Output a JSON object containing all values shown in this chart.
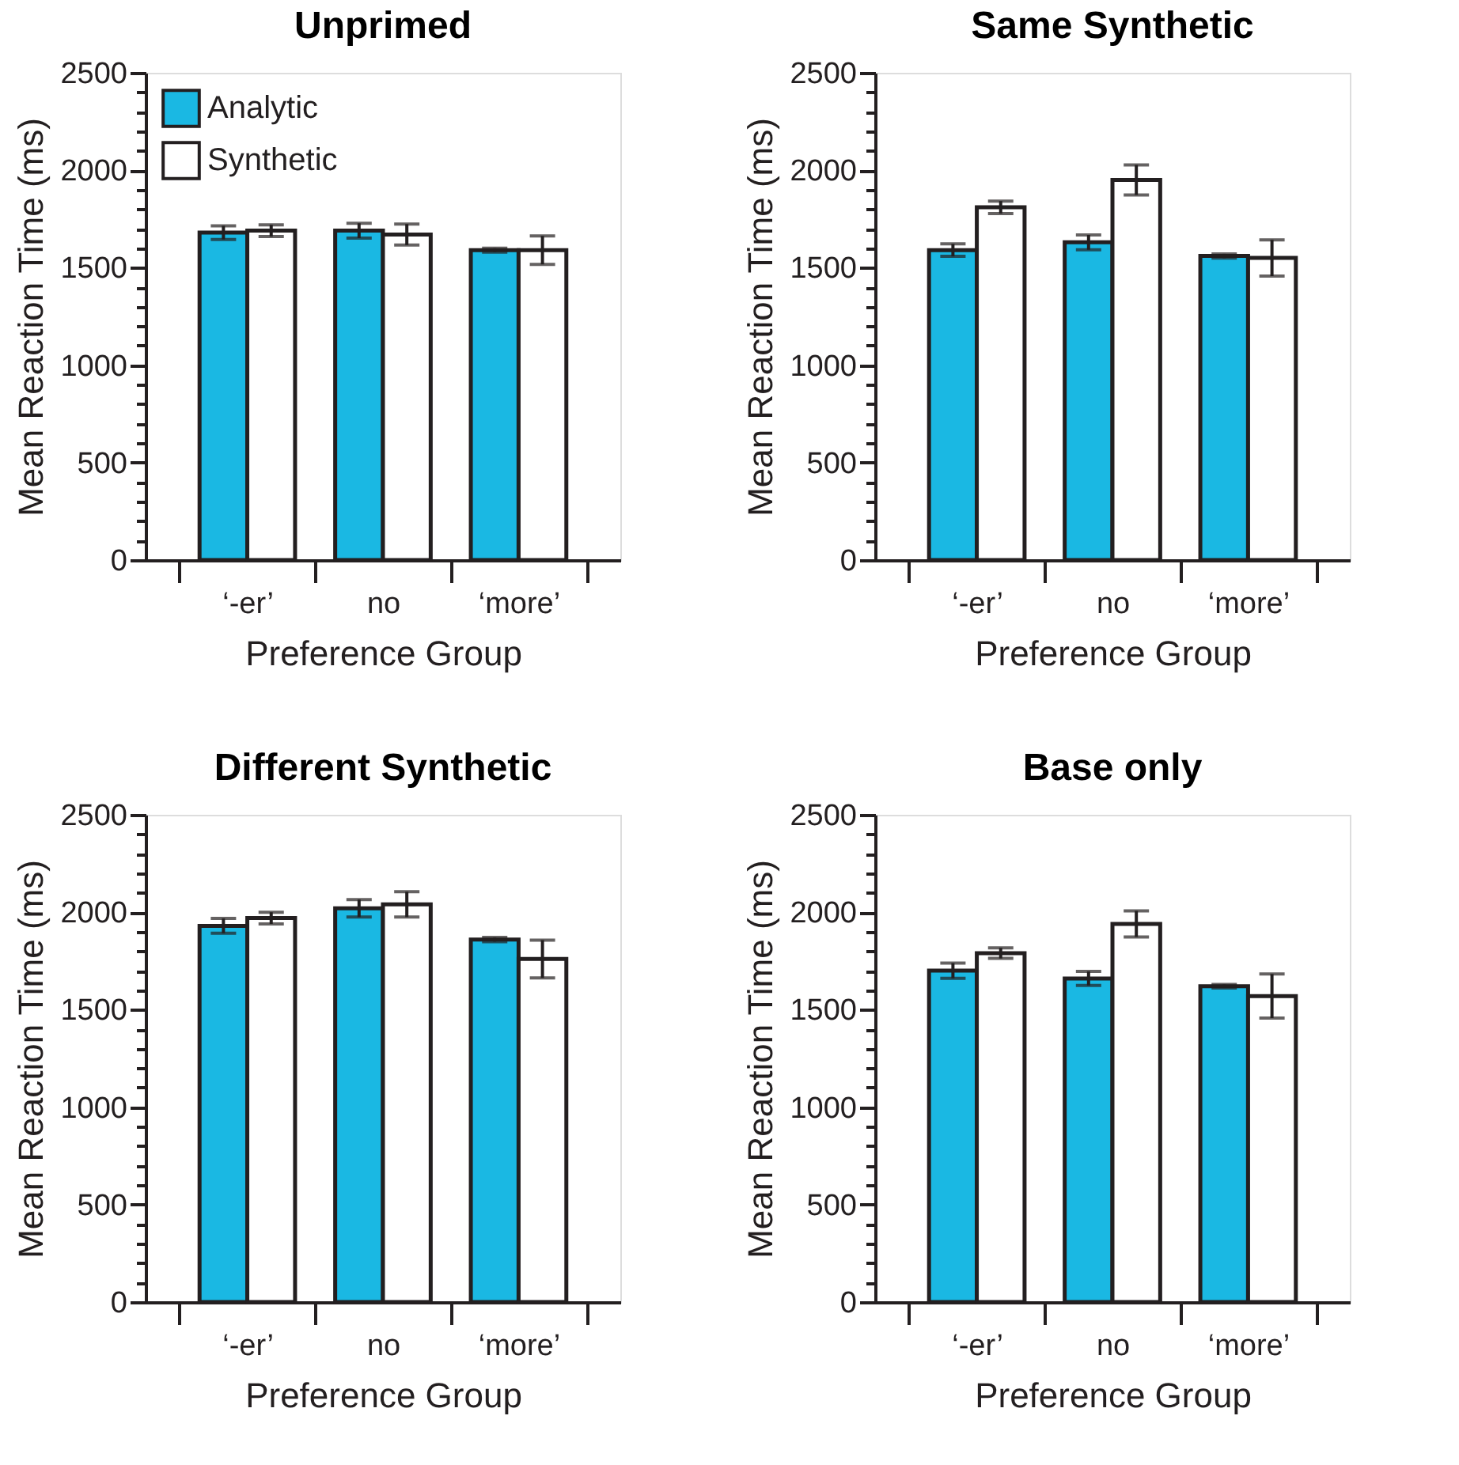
{
  "chart_data": [
    {
      "type": "bar",
      "title": "Unprimed",
      "xlabel": "Preference Group",
      "ylabel": "Mean Reaction Time (ms)",
      "categories": [
        "‘-er’",
        "no",
        "‘more’"
      ],
      "series": [
        {
          "name": "Analytic",
          "color": "#1ab8e3",
          "values": [
            1680,
            1690,
            1590
          ],
          "errors": [
            35,
            38,
            10
          ]
        },
        {
          "name": "Synthetic",
          "color": "#ffffff",
          "values": [
            1690,
            1670,
            1590
          ],
          "errors": [
            30,
            54,
            73
          ]
        }
      ],
      "ylim": [
        0,
        2500
      ],
      "yticks": [
        0,
        {
          "value": 100,
          "label": null
        },
        {
          "value": 200,
          "label": null
        },
        {
          "value": 300,
          "label": null
        },
        {
          "value": 400,
          "label": null
        },
        500,
        {
          "value": 600,
          "label": null
        },
        {
          "value": 700,
          "label": null
        },
        {
          "value": 800,
          "label": null
        },
        {
          "value": 900,
          "label": null
        },
        1000,
        {
          "value": 1100,
          "label": null
        },
        {
          "value": 1200,
          "label": null
        },
        {
          "value": 1300,
          "label": null
        },
        {
          "value": 1400,
          "label": null
        },
        1500,
        {
          "value": 1600,
          "label": null
        },
        {
          "value": 1700,
          "label": null
        },
        {
          "value": 1800,
          "label": null
        },
        {
          "value": 1900,
          "label": null
        },
        2000,
        {
          "value": 2100,
          "label": null
        },
        {
          "value": 2200,
          "label": null
        },
        {
          "value": 2300,
          "label": null
        },
        {
          "value": 2400,
          "label": null
        },
        2500
      ],
      "legend": "top left",
      "grid": false
    },
    {
      "type": "bar",
      "title": "Same Synthetic",
      "xlabel": "Preference Group",
      "ylabel": "Mean Reaction Time (ms)",
      "categories": [
        "‘-er’",
        "no",
        "‘more’"
      ],
      "series": [
        {
          "name": "Analytic",
          "color": "#1ab8e3",
          "values": [
            1590,
            1630,
            1560
          ],
          "errors": [
            32,
            38,
            11
          ]
        },
        {
          "name": "Synthetic",
          "color": "#ffffff",
          "values": [
            1810,
            1950,
            1550
          ],
          "errors": [
            32,
            77,
            93
          ]
        }
      ],
      "ylim": [
        0,
        2500
      ],
      "yticks": [
        0,
        {
          "value": 100,
          "label": null
        },
        {
          "value": 200,
          "label": null
        },
        {
          "value": 300,
          "label": null
        },
        {
          "value": 400,
          "label": null
        },
        500,
        {
          "value": 600,
          "label": null
        },
        {
          "value": 700,
          "label": null
        },
        {
          "value": 800,
          "label": null
        },
        {
          "value": 900,
          "label": null
        },
        1000,
        {
          "value": 1100,
          "label": null
        },
        {
          "value": 1200,
          "label": null
        },
        {
          "value": 1300,
          "label": null
        },
        {
          "value": 1400,
          "label": null
        },
        1500,
        {
          "value": 1600,
          "label": null
        },
        {
          "value": 1700,
          "label": null
        },
        {
          "value": 1800,
          "label": null
        },
        {
          "value": 1900,
          "label": null
        },
        2000,
        {
          "value": 2100,
          "label": null
        },
        {
          "value": 2200,
          "label": null
        },
        {
          "value": 2300,
          "label": null
        },
        {
          "value": 2400,
          "label": null
        },
        2500
      ],
      "legend": "top left",
      "grid": false
    },
    {
      "type": "bar",
      "title": "Different Synthetic",
      "xlabel": "Preference Group",
      "ylabel": "Mean Reaction Time (ms)",
      "categories": [
        "‘-er’",
        "no",
        "‘more’"
      ],
      "series": [
        {
          "name": "Analytic",
          "color": "#1ab8e3",
          "values": [
            1930,
            2020,
            1860
          ],
          "errors": [
            38,
            45,
            11
          ]
        },
        {
          "name": "Synthetic",
          "color": "#ffffff",
          "values": [
            1970,
            2040,
            1760
          ],
          "errors": [
            30,
            65,
            97
          ]
        }
      ],
      "ylim": [
        0,
        2500
      ],
      "yticks": [
        0,
        {
          "value": 100,
          "label": null
        },
        {
          "value": 200,
          "label": null
        },
        {
          "value": 300,
          "label": null
        },
        {
          "value": 400,
          "label": null
        },
        500,
        {
          "value": 600,
          "label": null
        },
        {
          "value": 700,
          "label": null
        },
        {
          "value": 800,
          "label": null
        },
        {
          "value": 900,
          "label": null
        },
        1000,
        {
          "value": 1100,
          "label": null
        },
        {
          "value": 1200,
          "label": null
        },
        {
          "value": 1300,
          "label": null
        },
        {
          "value": 1400,
          "label": null
        },
        1500,
        {
          "value": 1600,
          "label": null
        },
        {
          "value": 1700,
          "label": null
        },
        {
          "value": 1800,
          "label": null
        },
        {
          "value": 1900,
          "label": null
        },
        2000,
        {
          "value": 2100,
          "label": null
        },
        {
          "value": 2200,
          "label": null
        },
        {
          "value": 2300,
          "label": null
        },
        {
          "value": 2400,
          "label": null
        },
        2500
      ],
      "legend": "top left",
      "grid": false
    },
    {
      "type": "bar",
      "title": "Base only",
      "xlabel": "Preference Group",
      "ylabel": "Mean Reaction Time (ms)",
      "categories": [
        "‘-er’",
        "no",
        "‘more’"
      ],
      "series": [
        {
          "name": "Analytic",
          "color": "#1ab8e3",
          "values": [
            1700,
            1660,
            1620
          ],
          "errors": [
            39,
            36,
            9
          ]
        },
        {
          "name": "Synthetic",
          "color": "#ffffff",
          "values": [
            1790,
            1940,
            1570
          ],
          "errors": [
            27,
            67,
            113
          ]
        }
      ],
      "ylim": [
        0,
        2500
      ],
      "yticks": [
        0,
        {
          "value": 100,
          "label": null
        },
        {
          "value": 200,
          "label": null
        },
        {
          "value": 300,
          "label": null
        },
        {
          "value": 400,
          "label": null
        },
        500,
        {
          "value": 600,
          "label": null
        },
        {
          "value": 700,
          "label": null
        },
        {
          "value": 800,
          "label": null
        },
        {
          "value": 900,
          "label": null
        },
        1000,
        {
          "value": 1100,
          "label": null
        },
        {
          "value": 1200,
          "label": null
        },
        {
          "value": 1300,
          "label": null
        },
        {
          "value": 1400,
          "label": null
        },
        1500,
        {
          "value": 1600,
          "label": null
        },
        {
          "value": 1700,
          "label": null
        },
        {
          "value": 1800,
          "label": null
        },
        {
          "value": 1900,
          "label": null
        },
        2000,
        {
          "value": 2100,
          "label": null
        },
        {
          "value": 2200,
          "label": null
        },
        {
          "value": 2300,
          "label": null
        },
        {
          "value": 2400,
          "label": null
        },
        2500
      ],
      "legend": "top left",
      "grid": false
    }
  ]
}
